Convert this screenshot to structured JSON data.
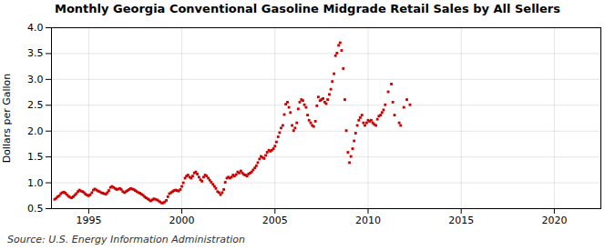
{
  "chart_data": {
    "type": "scatter",
    "title": "Monthly Georgia Conventional Gasoline Midgrade Retail Sales by All Sellers",
    "ylabel": "Dollars per Gallon",
    "caption": "Source: U.S. Energy Information Administration",
    "color": "#CC0000",
    "marker": "square",
    "grid": true,
    "xlim": [
      1993.0,
      2022.5
    ],
    "ylim": [
      0.5,
      4.0
    ],
    "xticks": [
      1995,
      2000,
      2005,
      2010,
      2015,
      2020
    ],
    "yticks": [
      0.5,
      {
        "value": 1.0,
        "label": "1.0"
      },
      1.5,
      {
        "value": 2.0,
        "label": "2.0"
      },
      2.5,
      {
        "value": 3.0,
        "label": "3.0"
      },
      3.5,
      {
        "value": 4.0,
        "label": "4.0"
      }
    ],
    "x": [
      1993.17,
      1993.25,
      1993.33,
      1993.42,
      1993.5,
      1993.58,
      1993.67,
      1993.75,
      1993.83,
      1993.92,
      1994.0,
      1994.08,
      1994.17,
      1994.25,
      1994.33,
      1994.42,
      1994.5,
      1994.58,
      1994.67,
      1994.75,
      1994.83,
      1994.92,
      1995.0,
      1995.08,
      1995.17,
      1995.25,
      1995.33,
      1995.42,
      1995.5,
      1995.58,
      1995.67,
      1995.75,
      1995.83,
      1995.92,
      1996.0,
      1996.08,
      1996.17,
      1996.25,
      1996.33,
      1996.42,
      1996.5,
      1996.58,
      1996.67,
      1996.75,
      1996.83,
      1996.92,
      1997.0,
      1997.08,
      1997.17,
      1997.25,
      1997.33,
      1997.42,
      1997.5,
      1997.58,
      1997.67,
      1997.75,
      1997.83,
      1997.92,
      1998.0,
      1998.08,
      1998.17,
      1998.25,
      1998.33,
      1998.42,
      1998.5,
      1998.58,
      1998.67,
      1998.75,
      1998.83,
      1998.92,
      1999.0,
      1999.08,
      1999.17,
      1999.25,
      1999.33,
      1999.42,
      1999.5,
      1999.58,
      1999.67,
      1999.75,
      1999.83,
      1999.92,
      2000.0,
      2000.08,
      2000.17,
      2000.25,
      2000.33,
      2000.42,
      2000.5,
      2000.58,
      2000.67,
      2000.75,
      2000.83,
      2000.92,
      2001.0,
      2001.08,
      2001.17,
      2001.25,
      2001.33,
      2001.42,
      2001.5,
      2001.58,
      2001.67,
      2001.75,
      2001.83,
      2001.92,
      2002.0,
      2002.08,
      2002.17,
      2002.25,
      2002.33,
      2002.42,
      2002.5,
      2002.58,
      2002.67,
      2002.75,
      2002.83,
      2002.92,
      2003.0,
      2003.08,
      2003.17,
      2003.25,
      2003.33,
      2003.42,
      2003.5,
      2003.58,
      2003.67,
      2003.75,
      2003.83,
      2003.92,
      2004.0,
      2004.08,
      2004.17,
      2004.25,
      2004.33,
      2004.42,
      2004.5,
      2004.58,
      2004.67,
      2004.75,
      2004.83,
      2004.92,
      2005.0,
      2005.08,
      2005.17,
      2005.25,
      2005.33,
      2005.42,
      2005.5,
      2005.58,
      2005.67,
      2005.75,
      2005.83,
      2005.92,
      2006.0,
      2006.08,
      2006.17,
      2006.25,
      2006.33,
      2006.42,
      2006.5,
      2006.58,
      2006.67,
      2006.75,
      2006.83,
      2006.92,
      2007.0,
      2007.08,
      2007.17,
      2007.25,
      2007.33,
      2007.42,
      2007.5,
      2007.58,
      2007.67,
      2007.75,
      2007.83,
      2007.92,
      2008.0,
      2008.08,
      2008.17,
      2008.25,
      2008.33,
      2008.42,
      2008.5,
      2008.58,
      2008.67,
      2008.75,
      2008.83,
      2008.92,
      2009.0,
      2009.08,
      2009.17,
      2009.25,
      2009.33,
      2009.42,
      2009.5,
      2009.58,
      2009.67,
      2009.75,
      2009.83,
      2009.92,
      2010.0,
      2010.08,
      2010.17,
      2010.25,
      2010.33,
      2010.42,
      2010.5,
      2010.58,
      2010.67,
      2010.75,
      2010.83,
      2010.92,
      2011.08,
      2011.25,
      2011.33,
      2011.42,
      2011.67,
      2011.75,
      2011.92,
      2012.08,
      2012.25
    ],
    "values": [
      0.68,
      0.7,
      0.73,
      0.75,
      0.79,
      0.81,
      0.82,
      0.8,
      0.77,
      0.74,
      0.72,
      0.71,
      0.73,
      0.76,
      0.79,
      0.83,
      0.86,
      0.84,
      0.83,
      0.81,
      0.78,
      0.76,
      0.75,
      0.77,
      0.81,
      0.86,
      0.88,
      0.86,
      0.84,
      0.83,
      0.81,
      0.8,
      0.79,
      0.78,
      0.81,
      0.85,
      0.91,
      0.93,
      0.91,
      0.89,
      0.87,
      0.88,
      0.89,
      0.87,
      0.83,
      0.81,
      0.83,
      0.85,
      0.87,
      0.89,
      0.88,
      0.87,
      0.85,
      0.83,
      0.81,
      0.8,
      0.78,
      0.76,
      0.73,
      0.71,
      0.69,
      0.67,
      0.65,
      0.67,
      0.69,
      0.68,
      0.67,
      0.65,
      0.63,
      0.61,
      0.61,
      0.63,
      0.66,
      0.73,
      0.79,
      0.81,
      0.83,
      0.85,
      0.86,
      0.85,
      0.84,
      0.87,
      0.93,
      1.0,
      1.09,
      1.13,
      1.15,
      1.11,
      1.09,
      1.13,
      1.19,
      1.21,
      1.17,
      1.11,
      1.06,
      1.03,
      1.11,
      1.15,
      1.13,
      1.09,
      1.05,
      1.01,
      0.97,
      0.93,
      0.89,
      0.83,
      0.81,
      0.77,
      0.81,
      0.87,
      1.01,
      1.09,
      1.11,
      1.09,
      1.11,
      1.15,
      1.13,
      1.16,
      1.21,
      1.19,
      1.23,
      1.19,
      1.16,
      1.15,
      1.13,
      1.17,
      1.19,
      1.21,
      1.25,
      1.29,
      1.33,
      1.39,
      1.46,
      1.51,
      1.49,
      1.47,
      1.53,
      1.59,
      1.63,
      1.61,
      1.63,
      1.66,
      1.71,
      1.79,
      1.89,
      1.97,
      2.06,
      2.11,
      2.32,
      2.52,
      2.56,
      2.46,
      2.36,
      2.11,
      2.01,
      2.06,
      2.16,
      2.43,
      2.56,
      2.61,
      2.59,
      2.51,
      2.46,
      2.31,
      2.21,
      2.16,
      2.11,
      2.09,
      2.19,
      2.49,
      2.66,
      2.59,
      2.61,
      2.63,
      2.56,
      2.53,
      2.61,
      2.71,
      2.81,
      2.96,
      3.11,
      3.46,
      3.51,
      3.66,
      3.71,
      3.56,
      3.21,
      2.61,
      2.01,
      1.59,
      1.39,
      1.51,
      1.66,
      1.81,
      1.96,
      2.11,
      2.21,
      2.26,
      2.31,
      2.16,
      2.11,
      2.16,
      2.21,
      2.19,
      2.21,
      2.16,
      2.13,
      2.11,
      2.23,
      2.29,
      2.31,
      2.36,
      2.41,
      2.51,
      2.76,
      2.91,
      2.56,
      2.31,
      2.16,
      2.11,
      2.46,
      2.61,
      2.51
    ]
  }
}
